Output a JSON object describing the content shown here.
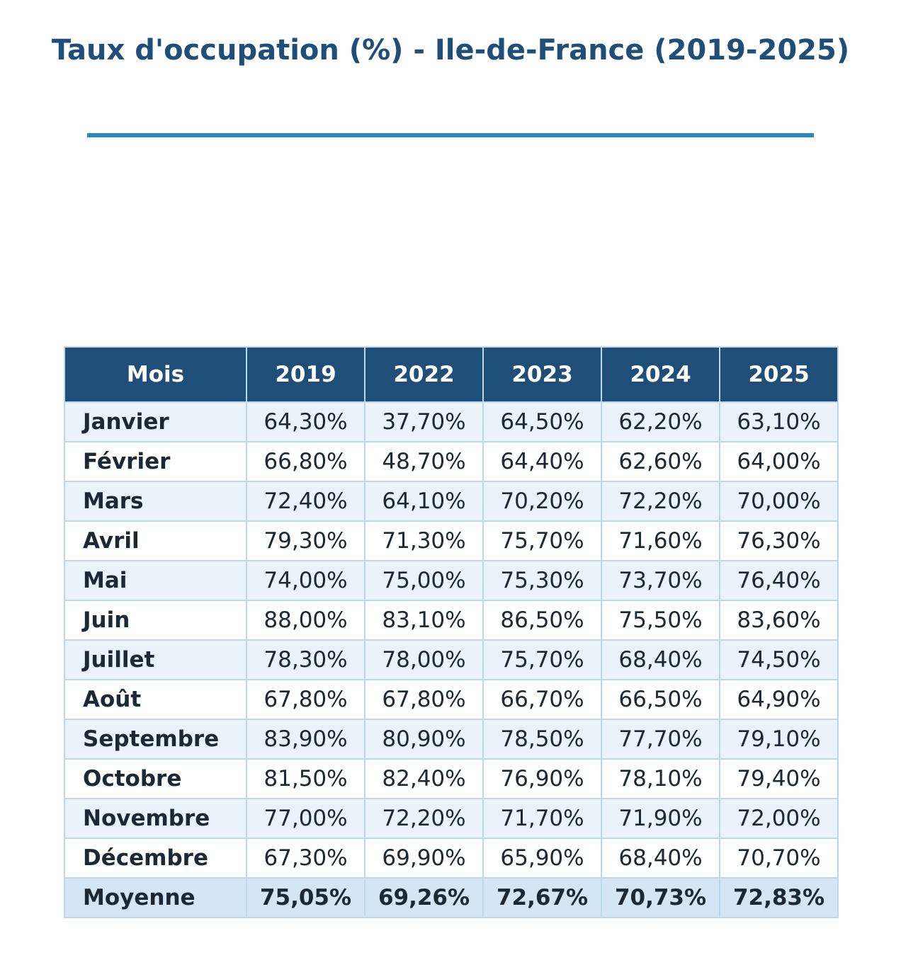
{
  "chart_data": {
    "type": "table",
    "title": "Taux d'occupation (%) - Ile-de-France (2019-2025)",
    "columns": [
      "Mois",
      "2019",
      "2022",
      "2023",
      "2024",
      "2025"
    ],
    "rows": [
      [
        "Janvier",
        "64,30%",
        "37,70%",
        "64,50%",
        "62,20%",
        "63,10%"
      ],
      [
        "Février",
        "66,80%",
        "48,70%",
        "64,40%",
        "62,60%",
        "64,00%"
      ],
      [
        "Mars",
        "72,40%",
        "64,10%",
        "70,20%",
        "72,20%",
        "70,00%"
      ],
      [
        "Avril",
        "79,30%",
        "71,30%",
        "75,70%",
        "71,60%",
        "76,30%"
      ],
      [
        "Mai",
        "74,00%",
        "75,00%",
        "75,30%",
        "73,70%",
        "76,40%"
      ],
      [
        "Juin",
        "88,00%",
        "83,10%",
        "86,50%",
        "75,50%",
        "83,60%"
      ],
      [
        "Juillet",
        "78,30%",
        "78,00%",
        "75,70%",
        "68,40%",
        "74,50%"
      ],
      [
        "Août",
        "67,80%",
        "67,80%",
        "66,70%",
        "66,50%",
        "64,90%"
      ],
      [
        "Septembre",
        "83,90%",
        "80,90%",
        "78,50%",
        "77,70%",
        "79,10%"
      ],
      [
        "Octobre",
        "81,50%",
        "82,40%",
        "76,90%",
        "78,10%",
        "79,40%"
      ],
      [
        "Novembre",
        "77,00%",
        "72,20%",
        "71,70%",
        "71,90%",
        "72,00%"
      ],
      [
        "Décembre",
        "67,30%",
        "69,90%",
        "65,90%",
        "68,40%",
        "70,70%"
      ]
    ],
    "summary_row": [
      "Moyenne",
      "75,05%",
      "69,26%",
      "72,67%",
      "70,73%",
      "72,83%"
    ]
  },
  "colors": {
    "title": "#1f4e79",
    "title_rule": "#2e86c1",
    "header_bg": "#1f4e79",
    "header_text": "#ffffff",
    "row_alt_bg": "#eaf2fa",
    "summary_bg": "#d4e5f6",
    "border": "#bdd7ee",
    "cell_text": "#1c2833"
  }
}
